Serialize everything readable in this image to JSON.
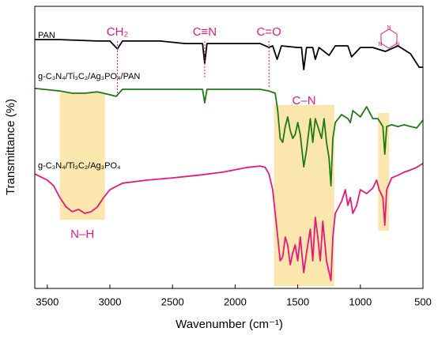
{
  "chart_data": {
    "type": "line",
    "xlabel": "Wavenumber (cm⁻¹)",
    "ylabel": "Transmittance (%)",
    "xlim": [
      3600,
      500
    ],
    "ylim": [
      0,
      100
    ],
    "xticks": [
      3500,
      3000,
      2500,
      2000,
      1500,
      1000,
      500
    ],
    "series": [
      {
        "name": "PAN",
        "color": "#000000",
        "x": [
          3600,
          3400,
          3100,
          3000,
          2940,
          2900,
          2600,
          2400,
          2260,
          2243,
          2225,
          2000,
          1800,
          1730,
          1700,
          1665,
          1630,
          1500,
          1470,
          1452,
          1430,
          1380,
          1360,
          1330,
          1250,
          1200,
          1100,
          1070,
          1000,
          900,
          800,
          700,
          600,
          530,
          500
        ],
        "values": [
          88.2,
          88.2,
          87.7,
          87.7,
          84.9,
          87.7,
          87.7,
          86.8,
          86.8,
          79.8,
          86.8,
          86.8,
          86.8,
          85.4,
          86.0,
          81.2,
          86.0,
          85.4,
          85.4,
          77.6,
          85.4,
          85.4,
          81.2,
          85.4,
          82.6,
          86.0,
          86.0,
          82.1,
          85.4,
          85.4,
          84.0,
          86.0,
          83.2,
          78.4,
          78.4
        ]
      },
      {
        "name": "g-C₃N₄/Ti₃C₂/Ag₃PO₄/PAN",
        "color": "#1f7a12",
        "x": [
          3600,
          3400,
          3300,
          3200,
          3100,
          2950,
          2900,
          2500,
          2260,
          2243,
          2225,
          1800,
          1730,
          1680,
          1660,
          1640,
          1620,
          1600,
          1580,
          1560,
          1540,
          1520,
          1500,
          1480,
          1452,
          1430,
          1400,
          1380,
          1360,
          1340,
          1310,
          1290,
          1270,
          1250,
          1235,
          1220,
          1200,
          1150,
          1100,
          1080,
          1060,
          1000,
          950,
          900,
          860,
          820,
          805,
          790,
          750,
          700,
          650,
          600,
          550,
          500
        ],
        "values": [
          70.9,
          70.0,
          69.2,
          69.2,
          69.7,
          68.1,
          70.6,
          70.6,
          70.6,
          65.8,
          70.6,
          70.6,
          70.0,
          69.2,
          63.0,
          53.2,
          51.8,
          57.4,
          60.8,
          56.0,
          53.2,
          54.6,
          58.8,
          54.6,
          43.1,
          49.0,
          60.2,
          51.8,
          60.2,
          57.4,
          53.2,
          60.2,
          51.8,
          46.2,
          36.4,
          53.2,
          58.8,
          61.6,
          60.2,
          58.8,
          63.0,
          60.8,
          64.4,
          60.2,
          60.2,
          57.4,
          47.6,
          57.4,
          58.0,
          57.4,
          58.0,
          57.4,
          56.9,
          59.7
        ]
      },
      {
        "name": "g-C₃N₄/Ti₃C₂/Ag₃PO₄",
        "color": "#e6197a",
        "x": [
          3600,
          3500,
          3450,
          3400,
          3350,
          3300,
          3250,
          3200,
          3150,
          3100,
          3050,
          3000,
          2900,
          2700,
          2500,
          2300,
          2100,
          1900,
          1800,
          1760,
          1730,
          1700,
          1680,
          1660,
          1640,
          1620,
          1600,
          1580,
          1560,
          1540,
          1520,
          1500,
          1480,
          1452,
          1430,
          1400,
          1380,
          1360,
          1340,
          1320,
          1300,
          1270,
          1235,
          1220,
          1200,
          1150,
          1120,
          1100,
          1080,
          1060,
          1030,
          1000,
          950,
          900,
          870,
          850,
          820,
          805,
          790,
          750,
          700,
          650,
          600,
          550,
          500
        ],
        "values": [
          40.6,
          38.4,
          36.4,
          32.2,
          28.9,
          27.2,
          28.0,
          26.6,
          27.2,
          28.9,
          32.2,
          35.0,
          37.3,
          38.4,
          39.2,
          40.1,
          41.2,
          42.9,
          43.4,
          42.9,
          40.6,
          35.0,
          26.6,
          18.2,
          9.8,
          11.2,
          18.2,
          15.4,
          8.4,
          12.6,
          15.4,
          9.8,
          18.2,
          5.6,
          12.6,
          21.0,
          9.8,
          25.2,
          18.2,
          9.8,
          23.8,
          9.8,
          2.8,
          18.2,
          26.6,
          30.8,
          35.0,
          29.4,
          32.2,
          26.6,
          29.4,
          35.0,
          33.6,
          35.6,
          38.4,
          35.0,
          32.2,
          22.4,
          35.0,
          39.2,
          40.1,
          41.2,
          42.0,
          42.9,
          44.3
        ]
      }
    ],
    "annotations": [
      {
        "text": "CH₂",
        "x": 2940
      },
      {
        "text": "C≡N",
        "x": 2243
      },
      {
        "text": "C=O",
        "x": 1730
      },
      {
        "text": "C–N",
        "x": 1450
      },
      {
        "text": "N–H",
        "x": 3220
      }
    ],
    "regions": [
      [
        3400,
        3040
      ],
      [
        1690,
        1208
      ],
      [
        858,
        770
      ]
    ]
  }
}
